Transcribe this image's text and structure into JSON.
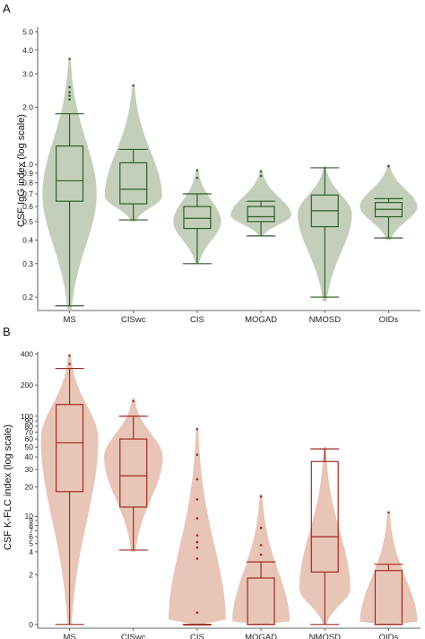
{
  "chart_data": [
    {
      "panel_label": "A",
      "type": "violin-box",
      "ylabel": "CSF IgG index (log scale)",
      "yscale": "log",
      "ylim": [
        0.17,
        5.3
      ],
      "yticks": [
        "0.2",
        "0.3",
        "0.4",
        "0.5",
        "0.6",
        "0.7",
        "0.8",
        "0.9",
        "1.0",
        "2.0",
        "3.0",
        "4.0",
        "5.0"
      ],
      "ytick_values": [
        0.2,
        0.3,
        0.4,
        0.5,
        0.6,
        0.7,
        0.8,
        0.9,
        1.0,
        2.0,
        3.0,
        4.0,
        5.0
      ],
      "categories": [
        "MS",
        "CISwc",
        "CIS",
        "MOGAD",
        "NMOSD",
        "OIDs"
      ],
      "colors": {
        "fill": "#c3cfbb",
        "line": "#2f5e2a"
      },
      "boxes": [
        {
          "min": 0.18,
          "q1": 0.64,
          "median": 0.82,
          "q3": 1.25,
          "max": 1.85,
          "outliers": [
            2.2,
            2.3,
            2.4,
            2.55,
            3.6
          ]
        },
        {
          "min": 0.51,
          "q1": 0.62,
          "median": 0.74,
          "q3": 1.02,
          "max": 1.2,
          "outliers": [
            2.6
          ]
        },
        {
          "min": 0.3,
          "q1": 0.46,
          "median": 0.52,
          "q3": 0.6,
          "max": 0.7,
          "outliers": [
            0.85,
            0.93
          ]
        },
        {
          "min": 0.42,
          "q1": 0.5,
          "median": 0.53,
          "q3": 0.6,
          "max": 0.64,
          "outliers": [
            0.87,
            0.92
          ]
        },
        {
          "min": 0.2,
          "q1": 0.47,
          "median": 0.57,
          "q3": 0.69,
          "max": 0.96,
          "outliers": []
        },
        {
          "min": 0.41,
          "q1": 0.53,
          "median": 0.58,
          "q3": 0.63,
          "max": 0.66,
          "outliers": [
            0.98
          ]
        }
      ],
      "violins": [
        {
          "min": 0.17,
          "max": 3.6,
          "mode": 0.7,
          "width": 0.85
        },
        {
          "min": 0.5,
          "max": 2.65,
          "mode": 0.68,
          "width": 0.9
        },
        {
          "min": 0.3,
          "max": 0.95,
          "mode": 0.5,
          "width": 0.75
        },
        {
          "min": 0.42,
          "max": 0.93,
          "mode": 0.54,
          "width": 0.95
        },
        {
          "min": 0.19,
          "max": 0.98,
          "mode": 0.55,
          "width": 0.85
        },
        {
          "min": 0.4,
          "max": 1.0,
          "mode": 0.6,
          "width": 0.9
        }
      ]
    },
    {
      "panel_label": "B",
      "type": "violin-box",
      "ylabel": "CSF K-FLC index (log scale)",
      "yscale": "log1p",
      "ylim": [
        -0.08,
        420
      ],
      "yticks": [
        "0",
        "2",
        "4",
        "5",
        "6",
        "7",
        "8",
        "9",
        "10",
        "20",
        "30",
        "40",
        "50",
        "60",
        "70",
        "80",
        "90",
        "100",
        "200",
        "400"
      ],
      "ytick_values": [
        0,
        2,
        4,
        5,
        6,
        7,
        8,
        9,
        10,
        20,
        30,
        40,
        50,
        60,
        70,
        80,
        90,
        100,
        200,
        400
      ],
      "categories": [
        "MS",
        "CISwc",
        "CIS",
        "MOGAD",
        "NMOSD",
        "OIDs"
      ],
      "colors": {
        "fill": "#e8c5b6",
        "line": "#a12a24"
      },
      "boxes": [
        {
          "min": 0.0,
          "q1": 18,
          "median": 55,
          "q3": 130,
          "max": 290,
          "outliers": [
            320,
            385
          ]
        },
        {
          "min": 4.2,
          "q1": 12.5,
          "median": 26,
          "q3": 60,
          "max": 100,
          "outliers": [
            140
          ]
        },
        {
          "min": 0.0,
          "q1": 0.0,
          "median": 0.0,
          "q3": 0.0,
          "max": 0.0,
          "outliers": [
            0.3,
            3.3,
            4.5,
            5.2,
            6.2,
            9.5,
            15,
            24,
            42,
            75
          ]
        },
        {
          "min": 0.0,
          "q1": 0.0,
          "median": 0.0,
          "q3": 1.8,
          "max": 3.0,
          "outliers": [
            3.7,
            4.8,
            7.5,
            16
          ]
        },
        {
          "min": 0.0,
          "q1": 2.2,
          "median": 6.0,
          "q3": 36,
          "max": 48,
          "outliers": []
        },
        {
          "min": 0.0,
          "q1": 0.0,
          "median": 0.0,
          "q3": 2.3,
          "max": 2.8,
          "outliers": [
            11
          ]
        }
      ],
      "violins": [
        {
          "min": 0.0,
          "max": 400,
          "mode": 60,
          "width": 0.9
        },
        {
          "min": 4.0,
          "max": 150,
          "mode": 40,
          "width": 0.92
        },
        {
          "min": 0.0,
          "max": 75,
          "mode": 0.05,
          "width": 0.9
        },
        {
          "min": 0.0,
          "max": 17,
          "mode": 0.05,
          "width": 0.9
        },
        {
          "min": 0.0,
          "max": 50,
          "mode": 1.2,
          "width": 0.8
        },
        {
          "min": 0.0,
          "max": 11,
          "mode": 0.05,
          "width": 0.9
        }
      ]
    }
  ]
}
